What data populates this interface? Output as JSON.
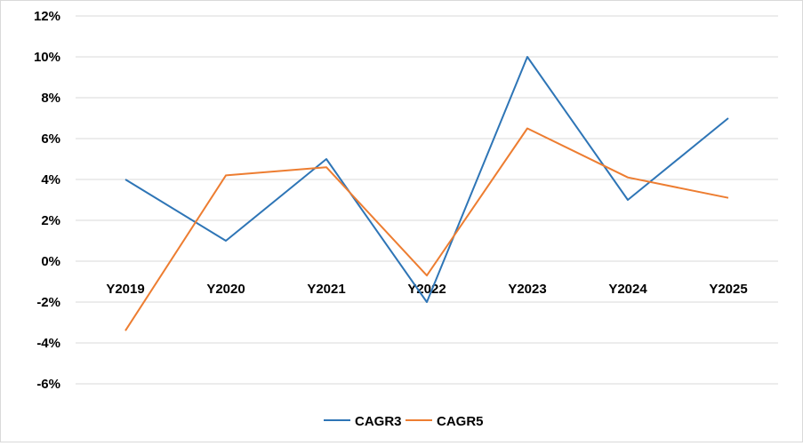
{
  "chart_data": {
    "type": "line",
    "title": "",
    "xlabel": "",
    "ylabel": "",
    "categories": [
      "Y2019",
      "Y2020",
      "Y2021",
      "Y2022",
      "Y2023",
      "Y2024",
      "Y2025"
    ],
    "series": [
      {
        "name": "CAGR3",
        "color": "#2e75b6",
        "values": [
          4.0,
          1.0,
          5.0,
          -2.0,
          10.0,
          3.0,
          7.0
        ]
      },
      {
        "name": "CAGR5",
        "color": "#ed7d31",
        "values": [
          -3.4,
          4.2,
          4.6,
          -0.7,
          6.5,
          4.1,
          3.1
        ]
      }
    ],
    "ylim": [
      -6,
      12
    ],
    "yticks": [
      -6,
      -4,
      -2,
      0,
      2,
      4,
      6,
      8,
      10,
      12
    ],
    "ytick_labels": [
      "-6%",
      "-4%",
      "-2%",
      "0%",
      "2%",
      "4%",
      "6%",
      "8%",
      "10%",
      "12%"
    ],
    "grid": true,
    "legend_position": "bottom",
    "gridline_color": "#d9d9d9"
  }
}
